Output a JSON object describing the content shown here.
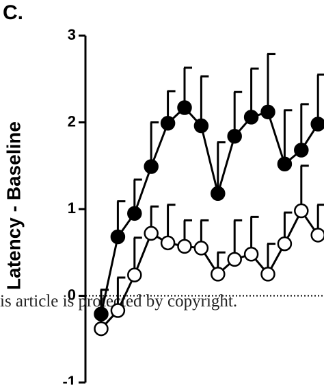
{
  "chart_data": {
    "type": "line",
    "panel_label": "C.",
    "y_label": "Latency - Baseline",
    "annotation": "is article is protected by copyright.",
    "categories": [
      null,
      null,
      null,
      null,
      null,
      null,
      null,
      null,
      null,
      null,
      null,
      null,
      null,
      null
    ],
    "series": [
      {
        "name": null,
        "color": "#000000",
        "marker": "filled",
        "values": [
          -0.21,
          0.68,
          0.95,
          1.49,
          1.99,
          2.17,
          1.96,
          1.18,
          1.84,
          2.06,
          2.12,
          1.52,
          1.68,
          1.98
        ],
        "errors": [
          0.28,
          0.41,
          0.39,
          0.51,
          0.37,
          0.46,
          0.57,
          0.59,
          0.51,
          0.56,
          0.67,
          0.62,
          0.53,
          0.57
        ]
      },
      {
        "name": null,
        "color": "#ffffff",
        "marker": "open",
        "values": [
          -0.38,
          -0.17,
          0.24,
          0.72,
          0.61,
          0.57,
          0.55,
          0.25,
          0.42,
          0.48,
          0.25,
          0.6,
          0.98,
          0.7
        ],
        "errors": [
          0.45,
          0.38,
          0.43,
          0.31,
          0.44,
          0.3,
          0.32,
          0.25,
          0.45,
          0.43,
          0.35,
          0.36,
          0.52,
          0.35
        ]
      }
    ],
    "ylim": [
      -1,
      3
    ],
    "yticks": [
      -1,
      0,
      1,
      2,
      3
    ],
    "reference_line": 0
  }
}
